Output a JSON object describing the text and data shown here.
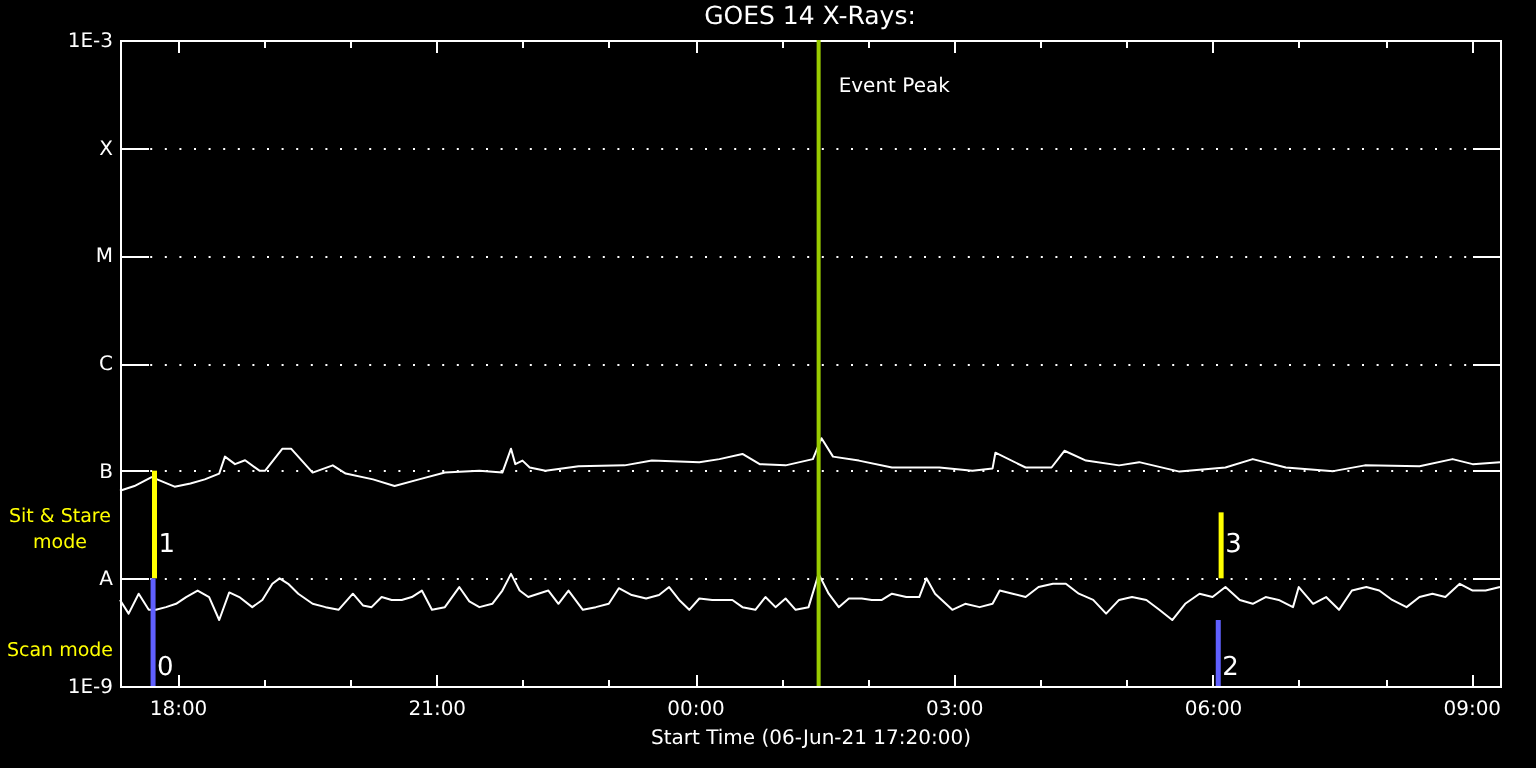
{
  "chart_data": {
    "type": "line",
    "title": "GOES 14 X-Rays:",
    "xlabel": "Start Time (06-Jun-21 17:20:00)",
    "log": true,
    "grid": "y",
    "xlim": [
      "--06-06T17:20",
      "--06-07T09:20"
    ],
    "xticks": [
      {
        "value": "--06-06T18:00",
        "label": "18:00"
      },
      {
        "value": "--06-06T19:00",
        "label": null
      },
      {
        "value": "--06-06T20:00",
        "label": null
      },
      {
        "value": "--06-06T21:00",
        "label": "21:00"
      },
      {
        "value": "--06-06T22:00",
        "label": null
      },
      {
        "value": "--06-06T23:00",
        "label": null
      },
      {
        "value": "--06-07T00:00",
        "label": "00:00"
      },
      {
        "value": "--06-07T01:00",
        "label": null
      },
      {
        "value": "--06-07T02:00",
        "label": null
      },
      {
        "value": "--06-07T03:00",
        "label": "03:00"
      },
      {
        "value": "--06-07T04:00",
        "label": null
      },
      {
        "value": "--06-07T05:00",
        "label": null
      },
      {
        "value": "--06-07T06:00",
        "label": "06:00"
      },
      {
        "value": "--06-07T07:00",
        "label": null
      },
      {
        "value": "--06-07T08:00",
        "label": null
      },
      {
        "value": "--06-07T09:00",
        "label": "09:00"
      }
    ],
    "ylim": [
      1e-09,
      0.001
    ],
    "yticks": [
      {
        "value": 1e-09,
        "label": "1E-9"
      },
      {
        "value": 1e-08,
        "label": "A"
      },
      {
        "value": 1e-07,
        "label": "B"
      },
      {
        "value": 1e-06,
        "label": "C"
      },
      {
        "value": 1e-05,
        "label": "M"
      },
      {
        "value": 0.0001,
        "label": "X"
      },
      {
        "value": 0.001,
        "label": "1E-3"
      }
    ],
    "series": [
      {
        "color": "#ffffff",
        "x": [
          "--06-06T17:20",
          "--06-06T17:30",
          "--06-06T17:42",
          "--06-06T17:58",
          "--06-06T18:09",
          "--06-06T18:19",
          "--06-06T18:29",
          "--06-06T18:33",
          "--06-06T18:40",
          "--06-06T18:47",
          "--06-06T18:57",
          "--06-06T19:01",
          "--06-06T19:13",
          "--06-06T19:19",
          "--06-06T19:34",
          "--06-06T19:48",
          "--06-06T19:57",
          "--06-06T20:16",
          "--06-06T20:31",
          "--06-06T20:48",
          "--06-06T21:06",
          "--06-06T21:30",
          "--06-06T21:46",
          "--06-06T21:52",
          "--06-06T21:55",
          "--06-06T22:00",
          "--06-06T22:05",
          "--06-06T22:16",
          "--06-06T22:39",
          "--06-06T23:11",
          "--06-06T23:30",
          "--06-07T00:03",
          "--06-07T00:17",
          "--06-07T00:33",
          "--06-07T00:45",
          "--06-07T01:03",
          "--06-07T01:22",
          "--06-07T01:28",
          "--06-07T01:36",
          "--06-07T01:54",
          "--06-07T02:17",
          "--06-07T02:50",
          "--06-07T03:13",
          "--06-07T03:27",
          "--06-07T03:29",
          "--06-07T03:50",
          "--06-07T04:08",
          "--06-07T04:17",
          "--06-07T04:32",
          "--06-07T04:55",
          "--06-07T05:09",
          "--06-07T05:37",
          "--06-07T06:09",
          "--06-07T06:28",
          "--06-07T06:51",
          "--06-07T07:24",
          "--06-07T07:46",
          "--06-07T08:24",
          "--06-07T08:47",
          "--06-07T09:01",
          "--06-07T09:20"
        ],
        "values": [
          6.5e-08,
          7.2e-08,
          8.7e-08,
          7.1e-08,
          7.6e-08,
          8.3e-08,
          9.4e-08,
          1.35e-07,
          1.15e-07,
          1.25e-07,
          1e-07,
          1e-07,
          1.6e-07,
          1.6e-07,
          9.6e-08,
          1.12e-07,
          9.4e-08,
          8.3e-08,
          7.2e-08,
          8.3e-08,
          9.6e-08,
          1e-07,
          9.6e-08,
          1.6e-07,
          1.15e-07,
          1.24e-07,
          1.07e-07,
          1e-07,
          1.1e-07,
          1.12e-07,
          1.24e-07,
          1.2e-07,
          1.28e-07,
          1.43e-07,
          1.15e-07,
          1.12e-07,
          1.28e-07,
          2e-07,
          1.35e-07,
          1.24e-07,
          1.07e-07,
          1.07e-07,
          1e-07,
          1.05e-07,
          1.47e-07,
          1.07e-07,
          1.07e-07,
          1.53e-07,
          1.24e-07,
          1.12e-07,
          1.2e-07,
          9.8e-08,
          1.07e-07,
          1.28e-07,
          1.07e-07,
          9.9e-08,
          1.12e-07,
          1.1e-07,
          1.28e-07,
          1.15e-07,
          1.2e-07
        ]
      },
      {
        "color": "#ffffff",
        "x": [
          "--06-06T17:20",
          "--06-06T17:26",
          "--06-06T17:33",
          "--06-06T17:40",
          "--06-06T17:45",
          "--06-06T17:52",
          "--06-06T17:59",
          "--06-06T18:06",
          "--06-06T18:14",
          "--06-06T18:22",
          "--06-06T18:29",
          "--06-06T18:36",
          "--06-06T18:43",
          "--06-06T18:52",
          "--06-06T18:59",
          "--06-06T19:06",
          "--06-06T19:11",
          "--06-06T19:17",
          "--06-06T19:24",
          "--06-06T19:34",
          "--06-06T19:43",
          "--06-06T19:52",
          "--06-06T20:02",
          "--06-06T20:09",
          "--06-06T20:15",
          "--06-06T20:22",
          "--06-06T20:29",
          "--06-06T20:36",
          "--06-06T20:43",
          "--06-06T20:50",
          "--06-06T20:57",
          "--06-06T21:06",
          "--06-06T21:16",
          "--06-06T21:23",
          "--06-06T21:30",
          "--06-06T21:39",
          "--06-06T21:46",
          "--06-06T21:52",
          "--06-06T21:58",
          "--06-06T22:04",
          "--06-06T22:11",
          "--06-06T22:18",
          "--06-06T22:25",
          "--06-06T22:32",
          "--06-06T22:42",
          "--06-06T22:51",
          "--06-06T23:00",
          "--06-06T23:07",
          "--06-06T23:16",
          "--06-06T23:26",
          "--06-06T23:35",
          "--06-06T23:42",
          "--06-06T23:49",
          "--06-06T23:56",
          "--06-07T00:03",
          "--06-07T00:12",
          "--06-07T00:19",
          "--06-07T00:26",
          "--06-07T00:33",
          "--06-07T00:42",
          "--06-07T00:49",
          "--06-07T00:56",
          "--06-07T01:03",
          "--06-07T01:10",
          "--06-07T01:19",
          "--06-07T01:26",
          "--06-07T01:33",
          "--06-07T01:40",
          "--06-07T01:47",
          "--06-07T01:56",
          "--06-07T02:03",
          "--06-07T02:10",
          "--06-07T02:17",
          "--06-07T02:27",
          "--06-07T02:36",
          "--06-07T02:41",
          "--06-07T02:47",
          "--06-07T02:59",
          "--06-07T03:08",
          "--06-07T03:18",
          "--06-07T03:27",
          "--06-07T03:32",
          "--06-07T03:41",
          "--06-07T03:50",
          "--06-07T03:59",
          "--06-07T04:09",
          "--06-07T04:18",
          "--06-07T04:27",
          "--06-07T04:37",
          "--06-07T04:46",
          "--06-07T04:55",
          "--06-07T05:04",
          "--06-07T05:14",
          "--06-07T05:23",
          "--06-07T05:32",
          "--06-07T05:41",
          "--06-07T05:51",
          "--06-07T06:00",
          "--06-07T06:09",
          "--06-07T06:19",
          "--06-07T06:28",
          "--06-07T06:37",
          "--06-07T06:46",
          "--06-07T06:56",
          "--06-07T07:00",
          "--06-07T07:10",
          "--06-07T07:19",
          "--06-07T07:28",
          "--06-07T07:37",
          "--06-07T07:47",
          "--06-07T07:56",
          "--06-07T08:05",
          "--06-07T08:15",
          "--06-07T08:24",
          "--06-07T08:33",
          "--06-07T08:42",
          "--06-07T08:52",
          "--06-07T09:01",
          "--06-07T09:10",
          "--06-07T09:20"
        ],
        "values": [
          6.3e-09,
          4.7e-09,
          7.2e-09,
          5.1e-09,
          5.1e-09,
          5.4e-09,
          5.8e-09,
          6.7e-09,
          7.7e-09,
          6.7e-09,
          4.1e-09,
          7.4e-09,
          6.7e-09,
          5.4e-09,
          6.3e-09,
          8.9e-09,
          1e-08,
          8.9e-09,
          7.2e-09,
          5.8e-09,
          5.4e-09,
          5.1e-09,
          7.2e-09,
          5.6e-09,
          5.4e-09,
          6.7e-09,
          6.3e-09,
          6.3e-09,
          6.7e-09,
          7.7e-09,
          5.1e-09,
          5.4e-09,
          8.3e-09,
          6.1e-09,
          5.4e-09,
          5.8e-09,
          7.7e-09,
          1.1e-08,
          7.7e-09,
          6.7e-09,
          7.2e-09,
          7.7e-09,
          5.8e-09,
          7.7e-09,
          5.1e-09,
          5.4e-09,
          5.8e-09,
          8.1e-09,
          7e-09,
          6.5e-09,
          7e-09,
          8.3e-09,
          6.3e-09,
          5.1e-09,
          6.5e-09,
          6.3e-09,
          6.3e-09,
          6.3e-09,
          5.4e-09,
          5.1e-09,
          6.7e-09,
          5.4e-09,
          6.5e-09,
          5.1e-09,
          5.4e-09,
          1.1e-08,
          7.2e-09,
          5.4e-09,
          6.5e-09,
          6.5e-09,
          6.3e-09,
          6.3e-09,
          7.2e-09,
          6.7e-09,
          6.7e-09,
          1e-08,
          7.2e-09,
          5.1e-09,
          5.8e-09,
          5.4e-09,
          5.8e-09,
          7.7e-09,
          7.2e-09,
          6.7e-09,
          8.3e-09,
          8.9e-09,
          8.9e-09,
          7.2e-09,
          6.3e-09,
          4.7e-09,
          6.3e-09,
          6.7e-09,
          6.3e-09,
          5.1e-09,
          4.1e-09,
          5.8e-09,
          7.2e-09,
          6.7e-09,
          8.3e-09,
          6.3e-09,
          5.8e-09,
          6.7e-09,
          6.3e-09,
          5.4e-09,
          8.3e-09,
          5.8e-09,
          6.7e-09,
          5.1e-09,
          7.7e-09,
          8.3e-09,
          7.7e-09,
          6.3e-09,
          5.4e-09,
          6.7e-09,
          7.2e-09,
          6.7e-09,
          8.9e-09,
          7.7e-09,
          7.7e-09,
          8.3e-09
        ]
      },
      {
        "type": "bar",
        "name": "Sit & Stare mode",
        "color": "#ffff00",
        "x": [
          "--06-06T17:44",
          "--06-07T06:06"
        ],
        "base": [
          1e-08,
          1e-08
        ],
        "values": [
          9e-08,
          3.1e-08
        ]
      },
      {
        "type": "bar",
        "name": "Scan mode",
        "color": "#6060ff",
        "x": [
          "--06-06T17:43",
          "--06-07T06:04"
        ],
        "base": [
          1e-09,
          1e-09
        ],
        "values": [
          9e-09,
          3.1e-09
        ]
      }
    ],
    "annotations": [
      {
        "text": "1",
        "x": "--06-06T17:44",
        "y": 2.1e-08
      },
      {
        "text": "3",
        "x": "--06-07T06:06",
        "y": 2.1e-08
      },
      {
        "text": "0",
        "x": "--06-06T17:43",
        "y": 1.5e-09
      },
      {
        "text": "2",
        "x": "--06-07T06:04",
        "y": 1.5e-09
      }
    ],
    "ref_lines": [
      {
        "axis": "x",
        "value": "--06-07T01:26",
        "label": "Event Peak",
        "color": "#99cc00"
      }
    ]
  }
}
